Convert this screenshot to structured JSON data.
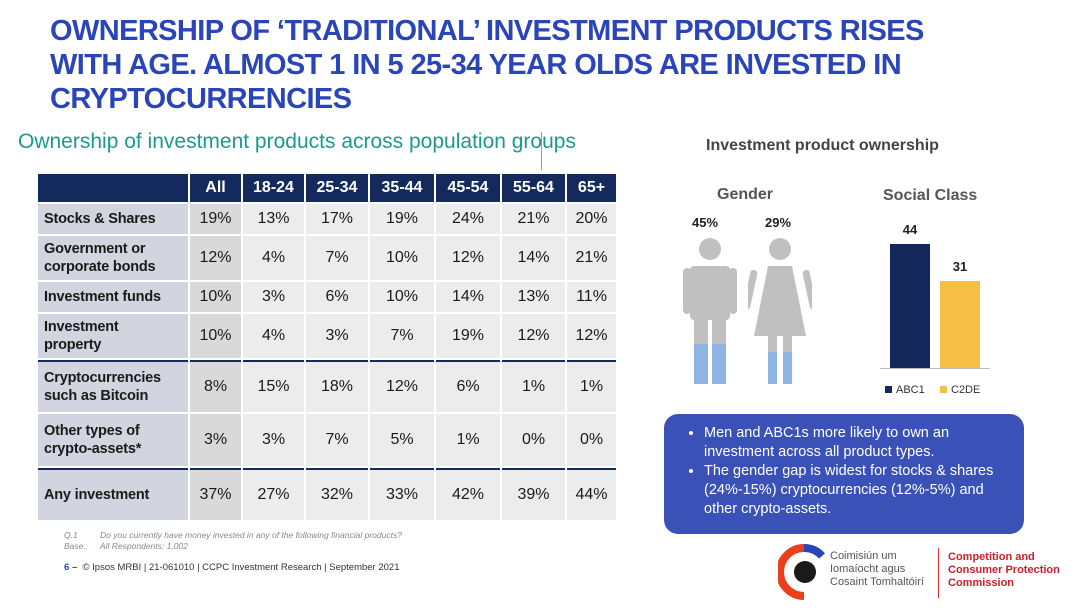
{
  "title": {
    "line1": "OWNERSHIP OF ‘TRADITIONAL’ INVESTMENT PRODUCTS RISES",
    "line2": "WITH AGE. ALMOST 1 IN 5 25-34 YEAR OLDS ARE INVESTED IN",
    "line3": "CRYPTOCURRENCIES"
  },
  "subtitle": "Ownership of investment products across population groups",
  "table": {
    "headers": [
      "All",
      "18-24",
      "25-34",
      "35-44",
      "45-54",
      "55-64",
      "65+"
    ],
    "rows": [
      {
        "label1": "Stocks & Shares",
        "label2": "",
        "values": [
          "19%",
          "13%",
          "17%",
          "19%",
          "24%",
          "21%",
          "20%"
        ]
      },
      {
        "label1": "Government or",
        "label2": "corporate bonds",
        "values": [
          "12%",
          "4%",
          "7%",
          "10%",
          "12%",
          "14%",
          "21%"
        ]
      },
      {
        "label1": "Investment funds",
        "label2": "",
        "values": [
          "10%",
          "3%",
          "6%",
          "10%",
          "14%",
          "13%",
          "11%"
        ]
      },
      {
        "label1": "Investment",
        "label2": "property",
        "values": [
          "10%",
          "4%",
          "3%",
          "7%",
          "19%",
          "12%",
          "12%"
        ]
      },
      {
        "label1": "Cryptocurrencies",
        "label2": "such as Bitcoin",
        "values": [
          "8%",
          "15%",
          "18%",
          "12%",
          "6%",
          "1%",
          "1%"
        ]
      },
      {
        "label1": "Other types of",
        "label2": "crypto-assets*",
        "values": [
          "3%",
          "3%",
          "7%",
          "5%",
          "1%",
          "0%",
          "0%"
        ]
      },
      {
        "label1": "Any investment",
        "label2": "",
        "values": [
          "37%",
          "27%",
          "32%",
          "33%",
          "42%",
          "39%",
          "44%"
        ]
      }
    ]
  },
  "footnote": {
    "q_label": "Q.1",
    "q_text": "Do you currently have money invested in any of the following financial products?",
    "base_label": "Base:",
    "base_text": "All Respondents: 1,002"
  },
  "footer": {
    "page": "6",
    "dash": "–",
    "text": "© Ipsos MRBI | 21-061010 | CCPC Investment Research | September 2021"
  },
  "right_panel": {
    "title": "Investment product ownership",
    "gender": {
      "title": "Gender",
      "male_pct": "45%",
      "female_pct": "29%"
    },
    "social_class": {
      "title": "Social Class",
      "bars": [
        {
          "name": "ABC1",
          "value": 44,
          "label": "44",
          "color": "#14285c"
        },
        {
          "name": "C2DE",
          "value": 31,
          "label": "31",
          "color": "#f5bf45"
        }
      ]
    }
  },
  "callout": {
    "bullet1": "Men and ABC1s more likely to own an investment  across all product types.",
    "bullet2": "The gender gap is widest for stocks & shares (24%-15%) cryptocurrencies (12%-5%) and other crypto-assets."
  },
  "logo": {
    "irish1": "Coimisiún um",
    "irish2": "Iomaíocht agus",
    "irish3": "Cosaint Tomhaltóirí",
    "eng1": "Competition and",
    "eng2": "Consumer Protection",
    "eng3": "Commission"
  },
  "colors": {
    "title": "#2a45b8",
    "subtitle": "#1a9a8c",
    "table_header": "#142a5c",
    "callout": "#3a52b8",
    "male_fill": "#8fb4e3",
    "person_grey": "#c0c0c0",
    "logo_red": "#c8202a"
  }
}
